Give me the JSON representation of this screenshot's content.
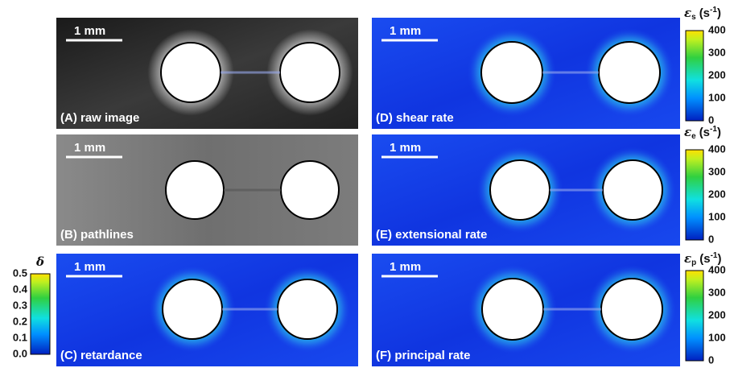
{
  "panels": [
    {
      "label": "(A) raw image",
      "scale_bar": "1 mm"
    },
    {
      "label": "(B) pathlines",
      "scale_bar": "1 mm"
    },
    {
      "label": "(C) retardance",
      "scale_bar": "1 mm"
    },
    {
      "label": "(D) shear rate",
      "scale_bar": "1 mm"
    },
    {
      "label": "(E) extensional rate",
      "scale_bar": "1 mm"
    },
    {
      "label": "(F) principal rate",
      "scale_bar": "1 mm"
    }
  ],
  "colorbars": [
    {
      "symbol": "δ",
      "ticks": [
        "0.5",
        "0.4",
        "0.3",
        "0.2",
        "0.1",
        "0.0"
      ]
    },
    {
      "symbol": "ε",
      "subscript": "s",
      "unit": "(s",
      "exponent": "-1",
      "close": ")",
      "ticks": [
        "400",
        "300",
        "200",
        "100",
        "0"
      ]
    },
    {
      "symbol": "ε",
      "subscript": "e",
      "unit": "(s",
      "exponent": "-1",
      "close": ")",
      "ticks": [
        "400",
        "300",
        "200",
        "100",
        "0"
      ]
    },
    {
      "symbol": "ε",
      "subscript": "p",
      "unit": "(s",
      "exponent": "-1",
      "close": ")",
      "ticks": [
        "400",
        "300",
        "200",
        "100",
        "0"
      ]
    }
  ]
}
